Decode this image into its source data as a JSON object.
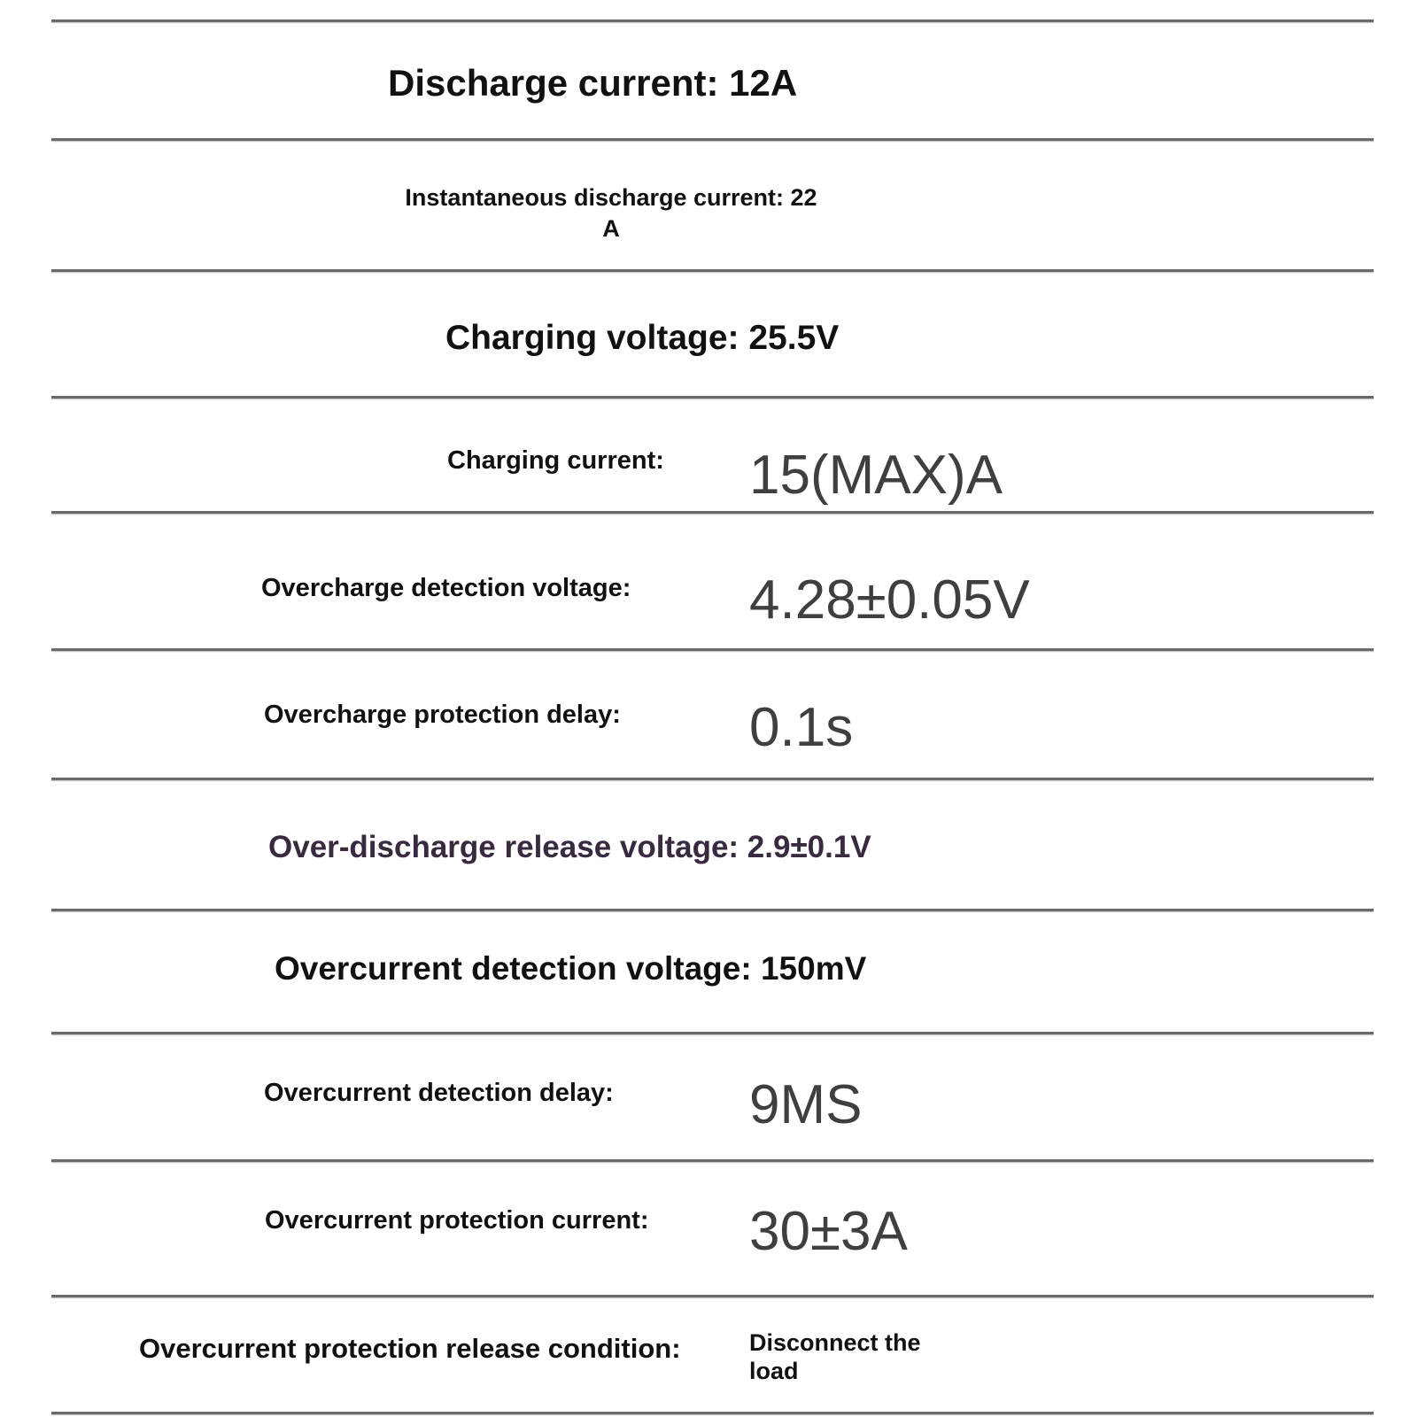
{
  "specs": [
    {
      "label": "Discharge current: 12A"
    },
    {
      "label_line1": "Instantaneous discharge current: 22",
      "label_line2": "A"
    },
    {
      "label": "Charging voltage: 25.5V"
    },
    {
      "label": "Charging current:",
      "value": "15(MAX)A"
    },
    {
      "label": "Overcharge detection voltage:",
      "value": "4.28±0.05V"
    },
    {
      "label": "Overcharge protection delay:",
      "value": "0.1s"
    },
    {
      "label": "Over-discharge release voltage: 2.9±0.1V"
    },
    {
      "label": "Overcurrent detection voltage: 150mV"
    },
    {
      "label": "Overcurrent detection delay:",
      "value": "9MS"
    },
    {
      "label": "Overcurrent protection current:",
      "value": "30±3A"
    },
    {
      "label": "Overcurrent protection release condition:",
      "value_line1": "Disconnect the",
      "value_line2": "load"
    }
  ],
  "colors": {
    "text": "#111111",
    "value": "#3f3f3f",
    "highlight_label": "#3a2a40",
    "rule": "#6a6a6a"
  }
}
